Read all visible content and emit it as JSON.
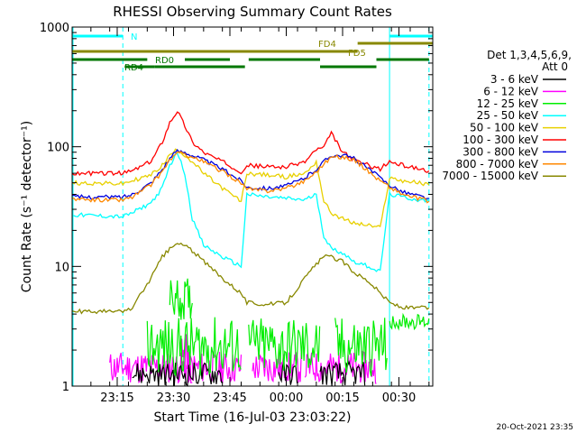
{
  "chart_data": {
    "type": "line",
    "title": "RHESSI Observing Summary Count Rates",
    "xlabel": "Start Time (16-Jul-03 23:03:22)",
    "ylabel": "Count Rate (s⁻¹ detector⁻¹)",
    "yscale": "log",
    "ylim": [
      1,
      1000
    ],
    "xlim_minutes": [
      0,
      96
    ],
    "x_tick_minutes": [
      12,
      27,
      42,
      57,
      72,
      87
    ],
    "x_tick_labels": [
      "23:15",
      "23:30",
      "23:45",
      "00:00",
      "00:15",
      "00:30"
    ],
    "y_tick_values": [
      1,
      10,
      100,
      1000
    ],
    "y_tick_labels": [
      "1",
      "10",
      "100",
      "1000"
    ],
    "legend_title": "Det 1,3,4,5,6,9,",
    "legend_subtitle": "Att 0",
    "legend_position": "right",
    "footer_date": "20-Oct-2021 23:35",
    "x_minutes": [
      0,
      13.5,
      16,
      21,
      24,
      26,
      28,
      30,
      32,
      35,
      40,
      45,
      46.5,
      52,
      57,
      62,
      65,
      67,
      69,
      72,
      75,
      79,
      82,
      84.5,
      88,
      92,
      95
    ],
    "series": [
      {
        "name": "3 - 6 keV",
        "color": "#000000",
        "values": [
          null,
          null,
          null,
          null,
          null,
          null,
          null,
          null,
          null,
          null,
          null,
          null,
          null,
          null,
          null,
          null,
          null,
          null,
          null,
          null,
          null,
          null,
          null,
          null,
          null,
          null,
          null
        ]
      },
      {
        "name": "6 - 12 keV",
        "color": "#ff00ff",
        "values": [
          null,
          null,
          null,
          null,
          null,
          null,
          null,
          null,
          null,
          null,
          null,
          null,
          null,
          null,
          null,
          null,
          null,
          null,
          null,
          null,
          null,
          null,
          null,
          null,
          null,
          null,
          null
        ]
      },
      {
        "name": "12 - 25 keV",
        "color": "#00ee00",
        "values": [
          null,
          null,
          null,
          null,
          null,
          null,
          null,
          null,
          null,
          null,
          null,
          null,
          null,
          null,
          null,
          null,
          null,
          null,
          null,
          null,
          null,
          null,
          null,
          null,
          null,
          null,
          null
        ]
      },
      {
        "name": "25 - 50 keV",
        "color": "#00ffff",
        "values": [
          27,
          26,
          28,
          34,
          45,
          70,
          90,
          60,
          25,
          15,
          12,
          10,
          40,
          38,
          37,
          36,
          40,
          18,
          14,
          13,
          11,
          10,
          9,
          40,
          38,
          36,
          35
        ]
      },
      {
        "name": "50 - 100 keV",
        "color": "#e8d000",
        "values": [
          50,
          49,
          52,
          58,
          70,
          85,
          95,
          85,
          75,
          60,
          45,
          35,
          60,
          58,
          56,
          60,
          75,
          35,
          28,
          25,
          23,
          22,
          21,
          55,
          52,
          50,
          48
        ]
      },
      {
        "name": "100 - 300 keV",
        "color": "#ff0000",
        "values": [
          60,
          60,
          63,
          75,
          110,
          160,
          200,
          150,
          110,
          90,
          75,
          62,
          70,
          68,
          68,
          75,
          95,
          98,
          130,
          90,
          78,
          70,
          65,
          75,
          70,
          66,
          63
        ]
      },
      {
        "name": "300 - 800 keV",
        "color": "#0000dd",
        "values": [
          38,
          38,
          40,
          50,
          65,
          80,
          92,
          90,
          85,
          78,
          65,
          52,
          46,
          45,
          47,
          55,
          65,
          75,
          85,
          85,
          80,
          65,
          55,
          48,
          42,
          39,
          37
        ]
      },
      {
        "name": "800 - 7000 keV",
        "color": "#ff8800",
        "values": [
          36,
          36,
          38,
          48,
          62,
          78,
          88,
          87,
          82,
          75,
          62,
          50,
          44,
          43,
          45,
          52,
          62,
          72,
          82,
          82,
          78,
          62,
          52,
          46,
          40,
          37,
          35
        ]
      },
      {
        "name": "7000 - 15000 keV",
        "color": "#888800",
        "values": [
          4.2,
          4.2,
          4.5,
          8,
          12,
          14,
          15.5,
          15,
          13.5,
          11,
          8,
          6,
          5,
          4.8,
          5,
          8,
          10.5,
          12,
          12,
          11,
          9,
          7.5,
          6,
          5,
          4.5,
          4.5,
          4.5
        ]
      }
    ],
    "annotations": [
      {
        "text": "N"
      },
      {
        "text": "FD4"
      },
      {
        "text": "FD5"
      },
      {
        "text": "RD0"
      },
      {
        "text": "RD4"
      }
    ]
  }
}
